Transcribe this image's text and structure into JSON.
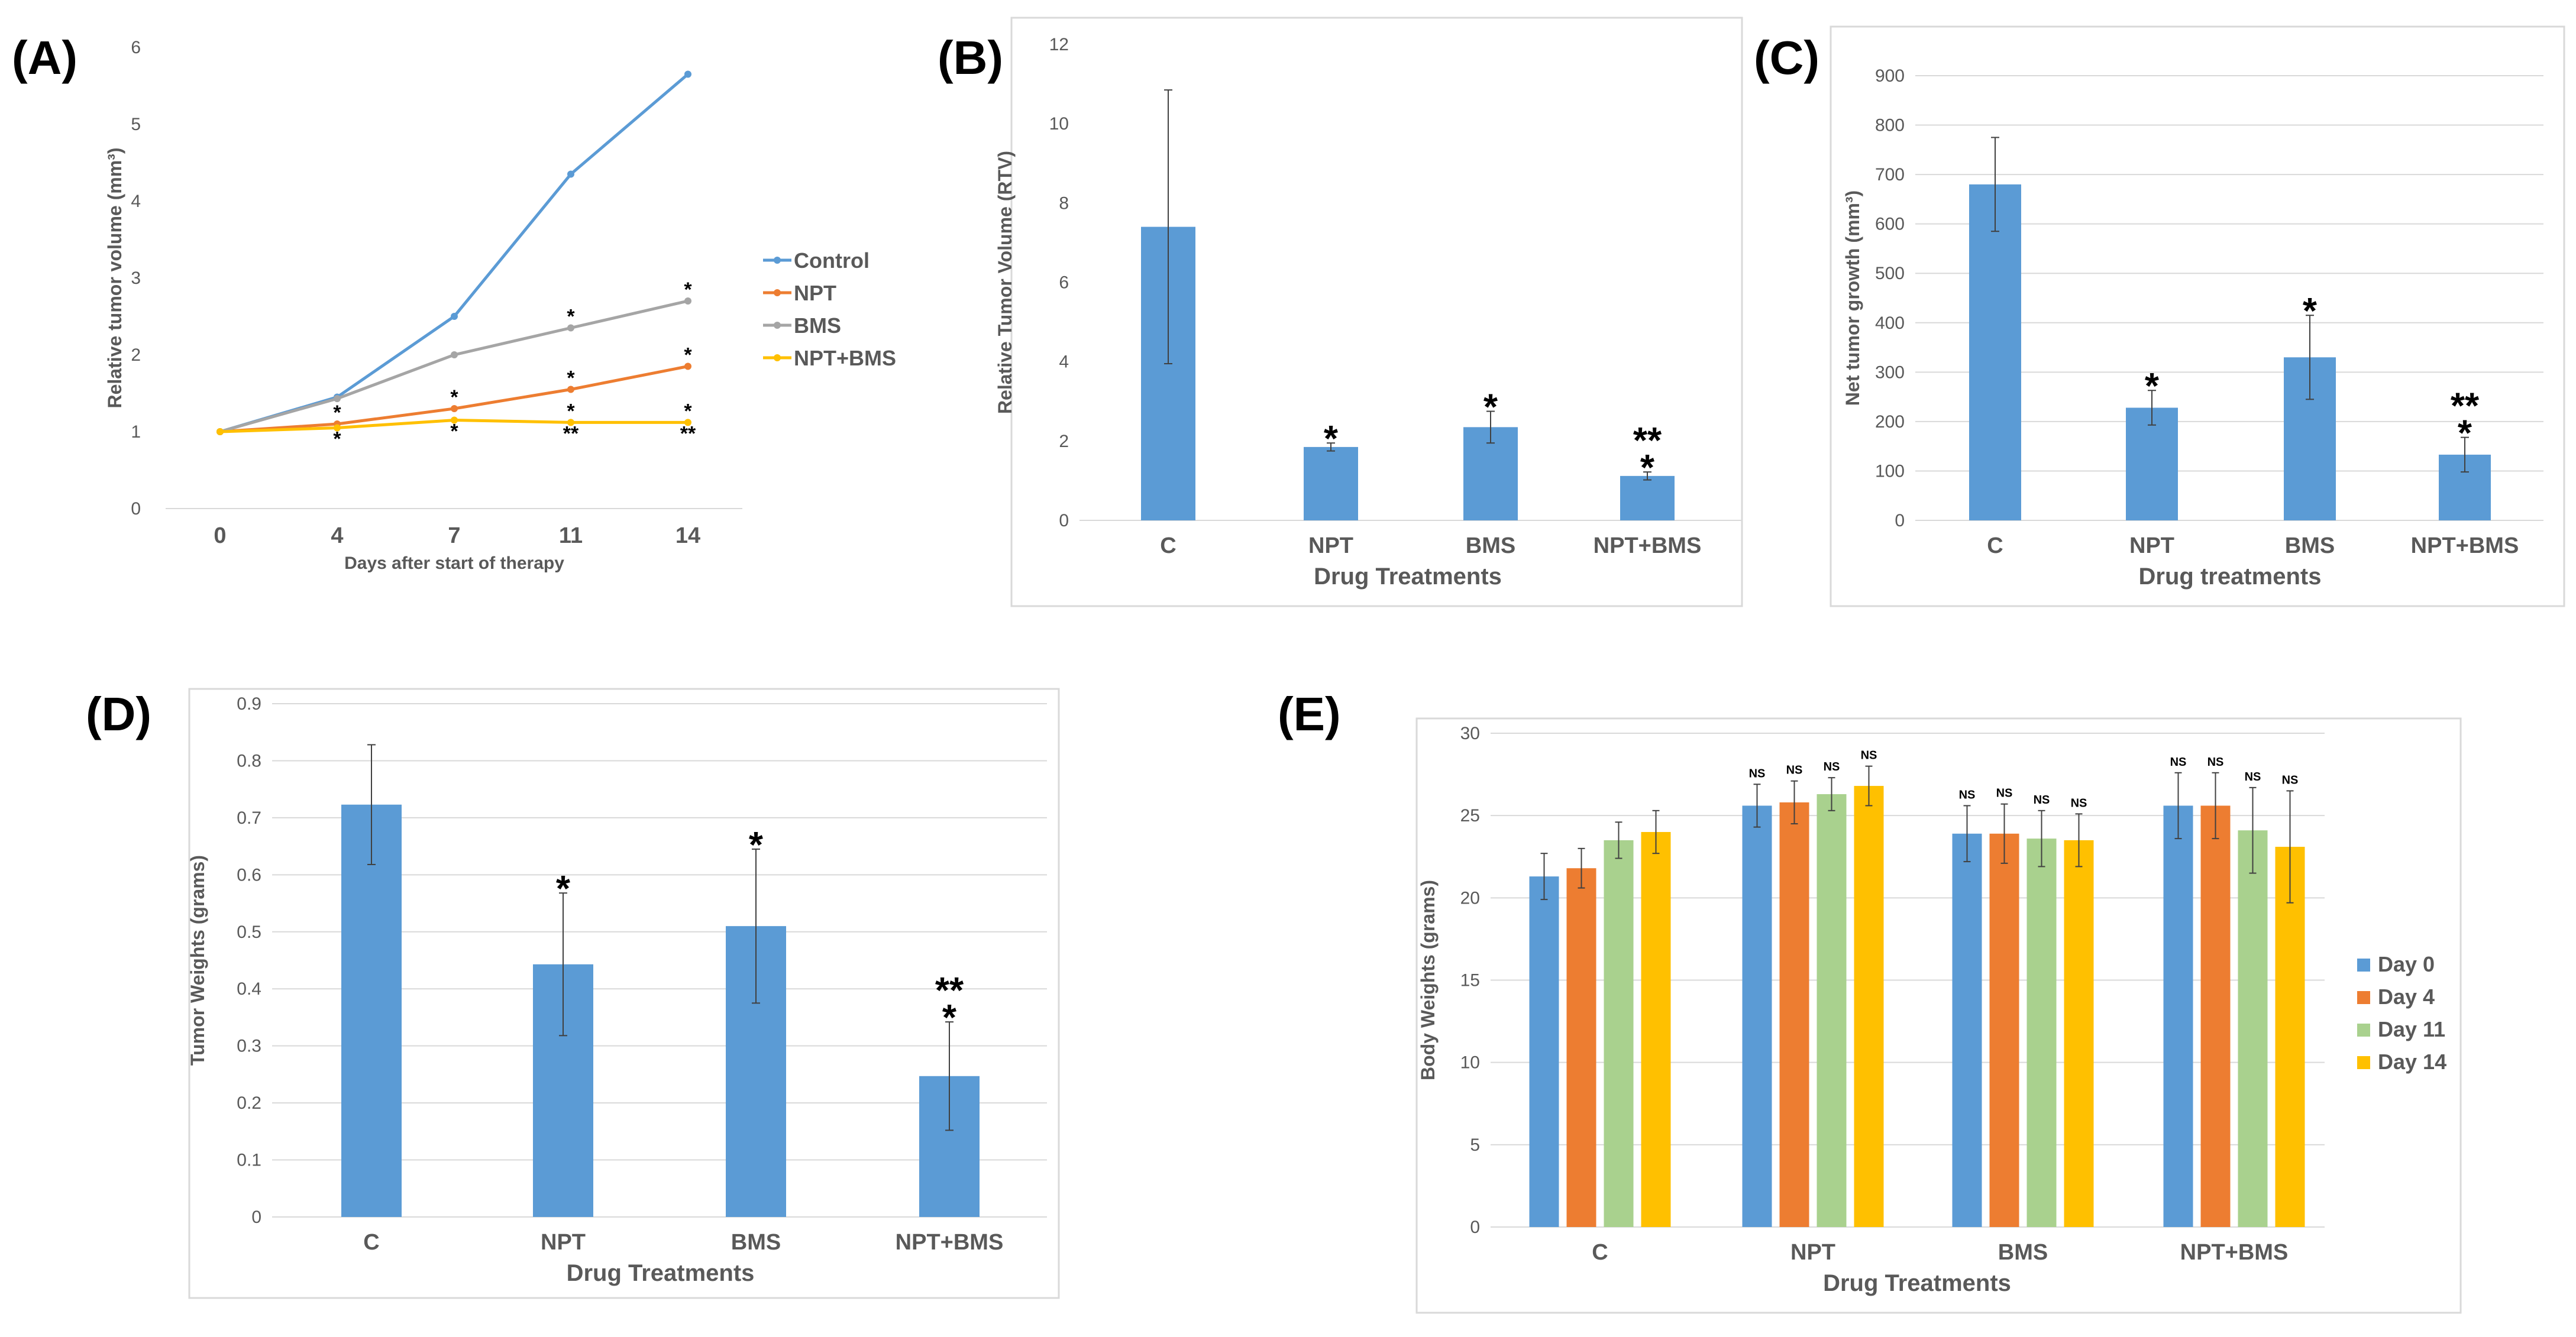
{
  "colors": {
    "blue": "#5B9BD5",
    "orange": "#ED7D31",
    "gray": "#A5A5A5",
    "yellow": "#FFC000",
    "green": "#A9D18E",
    "grid": "#D9D9D9",
    "axis_text": "#595959"
  },
  "chart_data": [
    {
      "id": "A",
      "panel_label": "(A)",
      "type": "line",
      "x": [
        0,
        4,
        7,
        11,
        14
      ],
      "x_tick_labels": [
        "0",
        "4",
        "7",
        "11",
        "14"
      ],
      "xlabel": "Days after start of therapy",
      "ylabel": "Relative tumor volume (mm³)",
      "ylim": [
        0,
        6
      ],
      "y_ticks": [
        "0",
        "1",
        "2",
        "3",
        "4",
        "5",
        "6"
      ],
      "grid": false,
      "legend_position": "right",
      "series": [
        {
          "name": "Control",
          "color": "#5B9BD5",
          "values": [
            1,
            1.45,
            2.5,
            4.35,
            5.65
          ]
        },
        {
          "name": "NPT",
          "color": "#ED7D31",
          "values": [
            1,
            1.1,
            1.3,
            1.55,
            1.85
          ]
        },
        {
          "name": "BMS",
          "color": "#A5A5A5",
          "values": [
            1,
            1.43,
            2.0,
            2.35,
            2.7
          ]
        },
        {
          "name": "NPT+BMS",
          "color": "#FFC000",
          "values": [
            1,
            1.05,
            1.15,
            1.12,
            1.12
          ]
        }
      ],
      "annotations": [
        {
          "x": 11,
          "y": 2.35,
          "text": "*",
          "pos": "above"
        },
        {
          "x": 14,
          "y": 2.7,
          "text": "*",
          "pos": "above"
        },
        {
          "x": 4,
          "y": 1.1,
          "text": "*",
          "pos": "above"
        },
        {
          "x": 7,
          "y": 1.3,
          "text": "*",
          "pos": "above"
        },
        {
          "x": 11,
          "y": 1.55,
          "text": "*",
          "pos": "above"
        },
        {
          "x": 14,
          "y": 1.85,
          "text": "*",
          "pos": "above"
        },
        {
          "x": 4,
          "y": 1.05,
          "text": "*",
          "pos": "below"
        },
        {
          "x": 7,
          "y": 1.15,
          "text": "*",
          "pos": "below"
        },
        {
          "x": 11,
          "y": 1.12,
          "text": "*",
          "pos": "above"
        },
        {
          "x": 14,
          "y": 1.12,
          "text": "*",
          "pos": "above"
        },
        {
          "x": 11,
          "y": 1.12,
          "text": "**",
          "pos": "below"
        },
        {
          "x": 14,
          "y": 1.12,
          "text": "**",
          "pos": "below"
        }
      ]
    },
    {
      "id": "B",
      "panel_label": "(B)",
      "type": "bar",
      "categories": [
        "C",
        "NPT",
        "BMS",
        "NPT+BMS"
      ],
      "values": [
        7.4,
        1.85,
        2.35,
        1.12
      ],
      "errors": [
        3.45,
        0.1,
        0.4,
        0.1
      ],
      "stars": [
        [],
        [
          "*"
        ],
        [
          "*"
        ],
        [
          "*",
          "**"
        ]
      ],
      "xlabel": "Drug Treatments",
      "ylabel": "Relative Tumor Volume (RTV)",
      "ylim": [
        0,
        12
      ],
      "y_ticks": [
        "0",
        "2",
        "4",
        "6",
        "8",
        "10",
        "12"
      ],
      "grid": false
    },
    {
      "id": "C",
      "panel_label": "(C)",
      "type": "bar",
      "categories": [
        "C",
        "NPT",
        "BMS",
        "NPT+BMS"
      ],
      "values": [
        680,
        228,
        330,
        133
      ],
      "errors": [
        95,
        35,
        85,
        35
      ],
      "stars": [
        [],
        [
          "*"
        ],
        [
          "*"
        ],
        [
          "*",
          "**"
        ]
      ],
      "xlabel": "Drug treatments",
      "ylabel": "Net tumor growth (mm³)",
      "ylim": [
        0,
        900
      ],
      "y_ticks": [
        "0",
        "100",
        "200",
        "300",
        "400",
        "500",
        "600",
        "700",
        "800",
        "900"
      ],
      "grid": true
    },
    {
      "id": "D",
      "panel_label": "(D)",
      "type": "bar",
      "categories": [
        "C",
        "NPT",
        "BMS",
        "NPT+BMS"
      ],
      "values": [
        0.723,
        0.443,
        0.51,
        0.247
      ],
      "errors": [
        0.105,
        0.125,
        0.135,
        0.095
      ],
      "stars": [
        [],
        [
          "*"
        ],
        [
          "*"
        ],
        [
          "*",
          "**"
        ]
      ],
      "xlabel": "Drug Treatments",
      "ylabel": "Tumor Weights (grams)",
      "ylim": [
        0,
        0.9
      ],
      "y_ticks": [
        "0",
        "0.1",
        "0.2",
        "0.3",
        "0.4",
        "0.5",
        "0.6",
        "0.7",
        "0.8",
        "0.9"
      ],
      "grid": true
    },
    {
      "id": "E",
      "panel_label": "(E)",
      "type": "bar",
      "categories": [
        "C",
        "NPT",
        "BMS",
        "NPT+BMS"
      ],
      "series": [
        {
          "name": "Day 0",
          "color": "#5B9BD5",
          "values": [
            21.3,
            25.6,
            23.9,
            25.6
          ],
          "errors": [
            1.4,
            1.3,
            1.7,
            2.0
          ]
        },
        {
          "name": "Day 4",
          "color": "#ED7D31",
          "values": [
            21.8,
            25.8,
            23.9,
            25.6
          ],
          "errors": [
            1.2,
            1.3,
            1.8,
            2.0
          ]
        },
        {
          "name": "Day 11",
          "color": "#A9D18E",
          "values": [
            23.5,
            26.3,
            23.6,
            24.1
          ],
          "errors": [
            1.1,
            1.0,
            1.7,
            2.6
          ]
        },
        {
          "name": "Day 14",
          "color": "#FFC000",
          "values": [
            24.0,
            26.8,
            23.5,
            23.1
          ],
          "errors": [
            1.3,
            1.2,
            1.6,
            3.4
          ]
        }
      ],
      "bar_annotation": "NS",
      "annotated_groups": [
        "NPT",
        "BMS",
        "NPT+BMS"
      ],
      "xlabel": "Drug Treatments",
      "ylabel": "Body Weights (grams)",
      "ylim": [
        0,
        30
      ],
      "y_ticks": [
        "0",
        "5",
        "10",
        "15",
        "20",
        "25",
        "30"
      ],
      "grid": true,
      "legend_position": "right"
    }
  ]
}
